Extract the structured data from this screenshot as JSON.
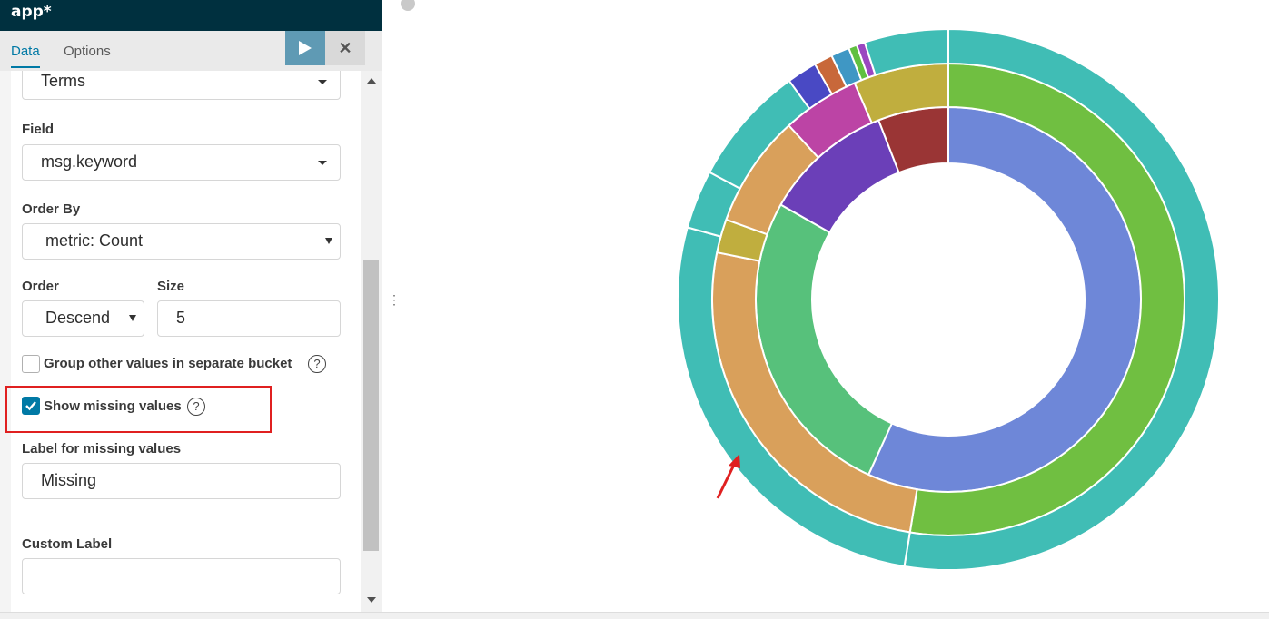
{
  "app": {
    "title": "app*"
  },
  "tabs": [
    {
      "label": "Data",
      "active": true
    },
    {
      "label": "Options",
      "active": false
    }
  ],
  "form": {
    "aggregation_value": "Terms",
    "field_label": "Field",
    "field_value": "msg.keyword",
    "order_by_label": "Order By",
    "order_by_value": "metric: Count",
    "order_label": "Order",
    "order_value": "Descend",
    "size_label": "Size",
    "size_value": "5",
    "group_other_label": "Group other values in separate bucket",
    "group_other_checked": false,
    "show_missing_label": "Show missing values",
    "show_missing_checked": true,
    "missing_label_label": "Label for missing values",
    "missing_label_value": "Missing",
    "custom_label_label": "Custom Label",
    "custom_label_value": ""
  },
  "icons": {
    "help": "?",
    "close": "✕",
    "run": "play-icon",
    "divider": "⋮"
  },
  "chart_data": {
    "type": "pie",
    "donut": true,
    "rings": [
      {
        "level": 1,
        "slices": [
          {
            "value": 56.8,
            "color": "#6e87d8"
          },
          {
            "value": 26.4,
            "color": "#57c17b"
          },
          {
            "value": 10.9,
            "color": "#6b3fb8"
          },
          {
            "value": 5.9,
            "color": "#9a3535"
          }
        ]
      },
      {
        "level": 2,
        "slices": [
          {
            "value": 52.6,
            "color": "#70bf41"
          },
          {
            "value": 25.6,
            "color": "#d9a05b"
          },
          {
            "value": 2.3,
            "color": "#c0ae3e"
          },
          {
            "value": 7.7,
            "color": "#d9a05b"
          },
          {
            "value": 5.3,
            "color": "#bc44a5"
          },
          {
            "value": 6.5,
            "color": "#c0ae3e"
          }
        ]
      },
      {
        "level": 3,
        "slices": [
          {
            "value": 52.6,
            "color": "#40bdb5"
          },
          {
            "value": 26.7,
            "color": "#40bdb5"
          },
          {
            "value": 3.5,
            "color": "#40bdb5"
          },
          {
            "value": 7.2,
            "color": "#40bdb5"
          },
          {
            "value": 1.8,
            "color": "#4949c4"
          },
          {
            "value": 1.1,
            "color": "#c8683a"
          },
          {
            "value": 1.1,
            "color": "#3f97c4"
          },
          {
            "value": 0.5,
            "color": "#60c040"
          },
          {
            "value": 0.5,
            "color": "#9a47c0"
          },
          {
            "value": 5.0,
            "color": "#40bdb5"
          }
        ]
      }
    ],
    "legend": "none"
  }
}
